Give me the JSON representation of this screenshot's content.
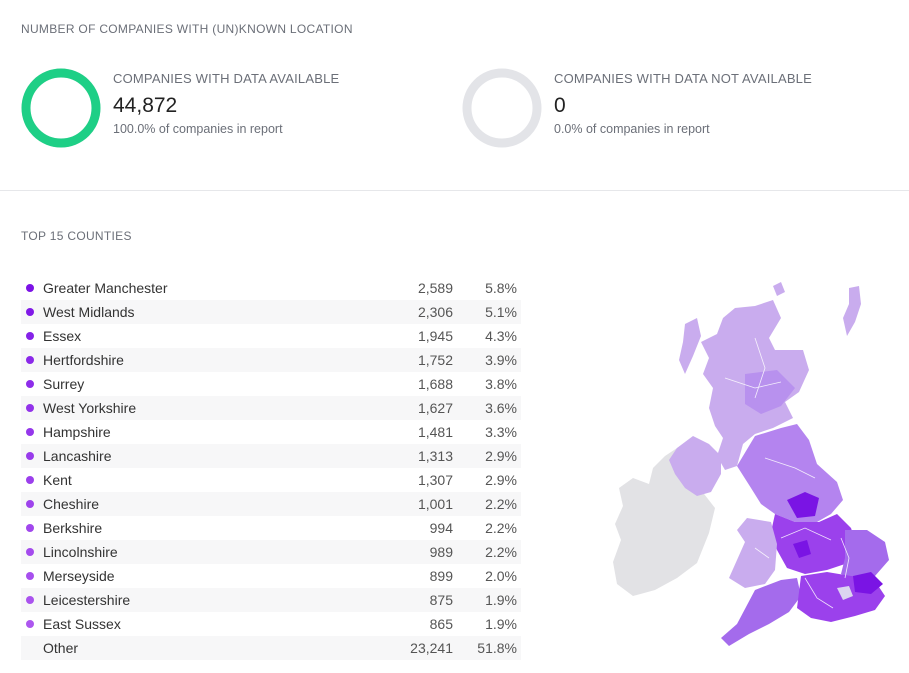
{
  "location_section": {
    "title": "NUMBER OF COMPANIES WITH (UN)KNOWN LOCATION",
    "available": {
      "label": "COMPANIES WITH DATA AVAILABLE",
      "value": "44,872",
      "percent_text": "100.0% of companies in report",
      "fraction": 1.0,
      "color": "#1ecf86"
    },
    "unavailable": {
      "label": "COMPANIES WITH DATA NOT AVAILABLE",
      "value": "0",
      "percent_text": "0.0% of companies in report",
      "fraction": 0.0,
      "color": "#e3e4e8"
    }
  },
  "counties_section": {
    "title": "TOP 15 COUNTIES",
    "rows": [
      {
        "name": "Greater Manchester",
        "count": "2,589",
        "share": "5.8%",
        "color": "#7c12e6"
      },
      {
        "name": "West Midlands",
        "count": "2,306",
        "share": "5.1%",
        "color": "#8019e7"
      },
      {
        "name": "Essex",
        "count": "1,945",
        "share": "4.3%",
        "color": "#8522e8"
      },
      {
        "name": "Hertfordshire",
        "count": "1,752",
        "share": "3.9%",
        "color": "#8a28e9"
      },
      {
        "name": "Surrey",
        "count": "1,688",
        "share": "3.8%",
        "color": "#8e2dea"
      },
      {
        "name": "West Yorkshire",
        "count": "1,627",
        "share": "3.6%",
        "color": "#9232ea"
      },
      {
        "name": "Hampshire",
        "count": "1,481",
        "share": "3.3%",
        "color": "#9537eb"
      },
      {
        "name": "Lancashire",
        "count": "1,313",
        "share": "2.9%",
        "color": "#983beb"
      },
      {
        "name": "Kent",
        "count": "1,307",
        "share": "2.9%",
        "color": "#9b3fec"
      },
      {
        "name": "Cheshire",
        "count": "1,001",
        "share": "2.2%",
        "color": "#9e43ec"
      },
      {
        "name": "Berkshire",
        "count": "994",
        "share": "2.2%",
        "color": "#a147ed"
      },
      {
        "name": "Lincolnshire",
        "count": "989",
        "share": "2.2%",
        "color": "#a44bed"
      },
      {
        "name": "Merseyside",
        "count": "899",
        "share": "2.0%",
        "color": "#a74fee"
      },
      {
        "name": "Leicestershire",
        "count": "875",
        "share": "1.9%",
        "color": "#aa53ee"
      },
      {
        "name": "East Sussex",
        "count": "865",
        "share": "1.9%",
        "color": "#ad57ef"
      },
      {
        "name": "Other",
        "count": "23,241",
        "share": "51.8%",
        "color": ""
      }
    ]
  },
  "map": {
    "icon": "uk-ireland-choropleth-map",
    "colors": {
      "ireland": "#e2e2e5",
      "scale_light": "#c9acee",
      "scale_mid": "#a46bec",
      "scale_dark": "#7a14e4"
    }
  }
}
